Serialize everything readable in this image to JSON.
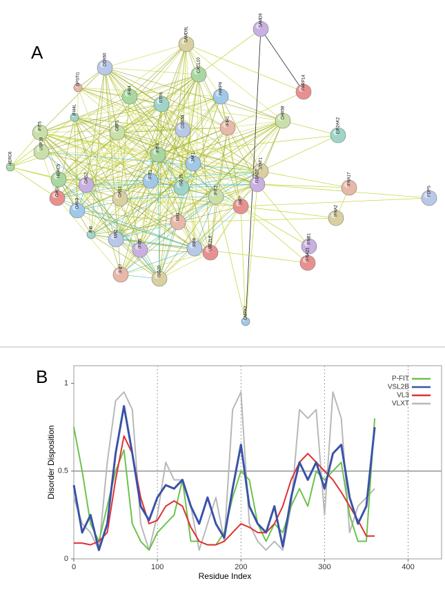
{
  "panel_a": {
    "label": "A",
    "nodes": [
      "HERC6",
      "IFIT5",
      "IFI44L",
      "EPSTI1",
      "DDX60",
      "SAMD9L",
      "SAMD9",
      "PARP14",
      "PARP9",
      "CXCL10",
      "DHX58",
      "EIF2AK2",
      "IFNA17",
      "FDPS",
      "IFNA2",
      "IFNB1",
      "IFNA21",
      "CMPK2",
      "IFI44",
      "GBP1",
      "RTP4",
      "IFIH1",
      "DDX58",
      "STAT1",
      "RSAD2",
      "IRF7",
      "IFIT1",
      "IFIT3",
      "IFIT2",
      "ISG15",
      "MX1",
      "IRF9",
      "OAS1",
      "OAS2",
      "OASL",
      "OAS3",
      "HERC5",
      "USP18",
      "IFI6",
      "IFI27",
      "MX2",
      "ISG20",
      "IFI35",
      "UBE2L6",
      "JAK1"
    ]
  },
  "chart_data": {
    "type": "line",
    "panel_label": "B",
    "x_label": "Residue Index",
    "y_label": "Disorder Disposition",
    "x": [
      0,
      10,
      20,
      30,
      40,
      50,
      60,
      70,
      80,
      90,
      100,
      110,
      120,
      130,
      140,
      150,
      160,
      170,
      180,
      190,
      200,
      210,
      220,
      230,
      240,
      250,
      260,
      270,
      280,
      290,
      300,
      310,
      320,
      330,
      340,
      350,
      360
    ],
    "series": [
      {
        "name": "P-FIT",
        "color": "#6cc24a",
        "values": [
          0.75,
          0.5,
          0.2,
          0.1,
          0.3,
          0.5,
          0.62,
          0.2,
          0.1,
          0.05,
          0.15,
          0.2,
          0.25,
          0.45,
          0.1,
          0.1,
          0.08,
          0.08,
          0.15,
          0.35,
          0.5,
          0.45,
          0.2,
          0.1,
          0.2,
          0.15,
          0.3,
          0.4,
          0.3,
          0.5,
          0.45,
          0.5,
          0.55,
          0.25,
          0.1,
          0.1,
          0.8
        ]
      },
      {
        "name": "VSL2B",
        "color": "#3a52a8",
        "values": [
          0.42,
          0.15,
          0.25,
          0.05,
          0.2,
          0.6,
          0.87,
          0.6,
          0.3,
          0.22,
          0.35,
          0.42,
          0.4,
          0.45,
          0.3,
          0.2,
          0.35,
          0.2,
          0.12,
          0.4,
          0.65,
          0.3,
          0.2,
          0.15,
          0.3,
          0.07,
          0.35,
          0.55,
          0.45,
          0.55,
          0.4,
          0.6,
          0.65,
          0.35,
          0.2,
          0.3,
          0.75
        ]
      },
      {
        "name": "VL3",
        "color": "#e03030",
        "values": [
          0.09,
          0.09,
          0.08,
          0.1,
          0.15,
          0.45,
          0.7,
          0.6,
          0.35,
          0.2,
          0.22,
          0.3,
          0.33,
          0.3,
          0.18,
          0.1,
          0.08,
          0.08,
          0.1,
          0.15,
          0.2,
          0.18,
          0.15,
          0.15,
          0.2,
          0.3,
          0.45,
          0.55,
          0.6,
          0.55,
          0.5,
          0.45,
          0.38,
          0.3,
          0.22,
          0.13,
          0.13
        ]
      },
      {
        "name": "VLXT",
        "color": "#b8b8b8",
        "values": [
          0.35,
          0.2,
          0.15,
          0.05,
          0.55,
          0.9,
          0.95,
          0.85,
          0.2,
          0.05,
          0.25,
          0.55,
          0.45,
          0.45,
          0.3,
          0.05,
          0.2,
          0.35,
          0.1,
          0.85,
          0.95,
          0.2,
          0.1,
          0.05,
          0.1,
          0.05,
          0.3,
          0.85,
          0.8,
          0.85,
          0.25,
          0.95,
          0.8,
          0.15,
          0.3,
          0.35,
          0.4
        ]
      }
    ],
    "xlim": [
      0,
      440
    ],
    "ylim": [
      0,
      1.1
    ],
    "xticks": [
      0,
      100,
      200,
      300,
      400
    ],
    "yticks": [
      0,
      0.5,
      1
    ],
    "xgrid": true,
    "hline": 0.5,
    "legend": "upper right"
  }
}
